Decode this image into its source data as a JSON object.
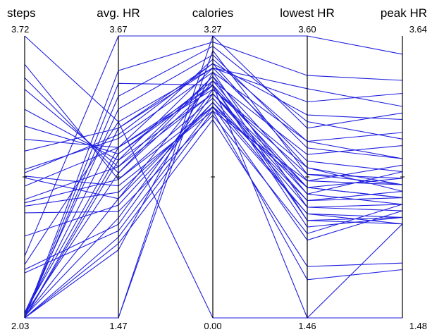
{
  "chart_data": {
    "type": "parallel-coordinates",
    "line_color": "#1f1fe0",
    "axes": [
      {
        "name": "steps",
        "min": 2.03,
        "max": 3.72,
        "min_label": "2.03",
        "max_label": "3.72"
      },
      {
        "name": "avg. HR",
        "min": 1.47,
        "max": 3.67,
        "min_label": "1.47",
        "max_label": "3.67"
      },
      {
        "name": "calories",
        "min": 0.0,
        "max": 3.27,
        "min_label": "0.00",
        "max_label": "3.27"
      },
      {
        "name": "lowest HR",
        "min": 1.46,
        "max": 3.6,
        "min_label": "1.46",
        "max_label": "3.60"
      },
      {
        "name": "peak HR",
        "min": 1.48,
        "max": 3.64,
        "min_label": "1.48",
        "max_label": "3.64"
      }
    ],
    "series": [
      {
        "values": [
          3.72,
          3.0,
          0.0,
          1.46,
          1.48
        ]
      },
      {
        "values": [
          3.55,
          2.55,
          2.45,
          2.05,
          2.3
        ]
      },
      {
        "values": [
          3.47,
          2.6,
          2.7,
          2.15,
          2.25
        ]
      },
      {
        "values": [
          3.4,
          2.65,
          2.8,
          2.2,
          2.2
        ]
      },
      {
        "values": [
          3.28,
          2.7,
          2.6,
          2.45,
          2.4
        ]
      },
      {
        "values": [
          3.18,
          2.75,
          2.75,
          2.4,
          2.35
        ]
      },
      {
        "values": [
          3.1,
          2.8,
          2.65,
          2.55,
          2.55
        ]
      },
      {
        "values": [
          3.03,
          2.95,
          2.9,
          2.65,
          2.6
        ]
      },
      {
        "values": [
          2.92,
          2.87,
          2.85,
          2.8,
          2.7
        ]
      },
      {
        "values": [
          2.9,
          2.9,
          2.95,
          2.6,
          2.45
        ]
      },
      {
        "values": [
          2.88,
          2.5,
          2.4,
          2.5,
          2.5
        ]
      },
      {
        "values": [
          2.87,
          2.4,
          2.5,
          2.35,
          2.4
        ]
      },
      {
        "values": [
          2.82,
          2.8,
          2.7,
          2.45,
          2.55
        ]
      },
      {
        "values": [
          2.74,
          2.65,
          2.6,
          2.4,
          2.6
        ]
      },
      {
        "values": [
          2.72,
          2.55,
          2.55,
          2.3,
          2.3
        ]
      },
      {
        "values": [
          2.7,
          2.45,
          2.45,
          2.25,
          2.2
        ]
      },
      {
        "values": [
          2.66,
          2.3,
          2.35,
          2.1,
          2.35
        ]
      },
      {
        "values": [
          2.52,
          2.35,
          2.5,
          2.25,
          2.25
        ]
      },
      {
        "values": [
          2.4,
          3.67,
          3.27,
          3.6,
          3.5
        ]
      },
      {
        "values": [
          2.35,
          3.0,
          2.9,
          3.1,
          3.2
        ]
      },
      {
        "values": [
          2.32,
          2.2,
          2.6,
          2.35,
          2.45
        ]
      },
      {
        "values": [
          2.3,
          2.15,
          2.45,
          2.45,
          2.4
        ]
      },
      {
        "values": [
          2.06,
          2.8,
          3.0,
          2.8,
          2.9
        ]
      },
      {
        "values": [
          2.06,
          3.1,
          3.05,
          2.75,
          2.7
        ]
      },
      {
        "values": [
          2.05,
          2.95,
          2.95,
          3.0,
          3.0
        ]
      },
      {
        "values": [
          2.05,
          2.6,
          2.8,
          2.5,
          2.65
        ]
      },
      {
        "values": [
          2.04,
          2.4,
          2.75,
          2.7,
          2.8
        ]
      },
      {
        "values": [
          2.04,
          2.25,
          2.65,
          2.6,
          2.5
        ]
      },
      {
        "values": [
          2.03,
          2.0,
          2.85,
          2.3,
          2.35
        ]
      },
      {
        "values": [
          2.03,
          1.47,
          3.27,
          2.9,
          3.05
        ]
      },
      {
        "values": [
          2.03,
          1.47,
          3.1,
          2.55,
          2.5
        ]
      },
      {
        "values": [
          2.03,
          2.75,
          2.7,
          2.2,
          2.25
        ]
      },
      {
        "values": [
          2.03,
          3.2,
          3.15,
          2.95,
          2.85
        ]
      },
      {
        "values": [
          2.03,
          3.4,
          3.2,
          3.3,
          3.3
        ]
      },
      {
        "values": [
          2.03,
          2.1,
          2.4,
          1.75,
          1.85
        ]
      },
      {
        "values": [
          2.03,
          2.05,
          2.3,
          1.85,
          1.9
        ]
      },
      {
        "values": [
          2.03,
          3.3,
          2.7,
          1.46,
          2.2
        ]
      },
      {
        "values": [
          2.03,
          2.7,
          2.9,
          3.2,
          3.1
        ]
      }
    ]
  }
}
